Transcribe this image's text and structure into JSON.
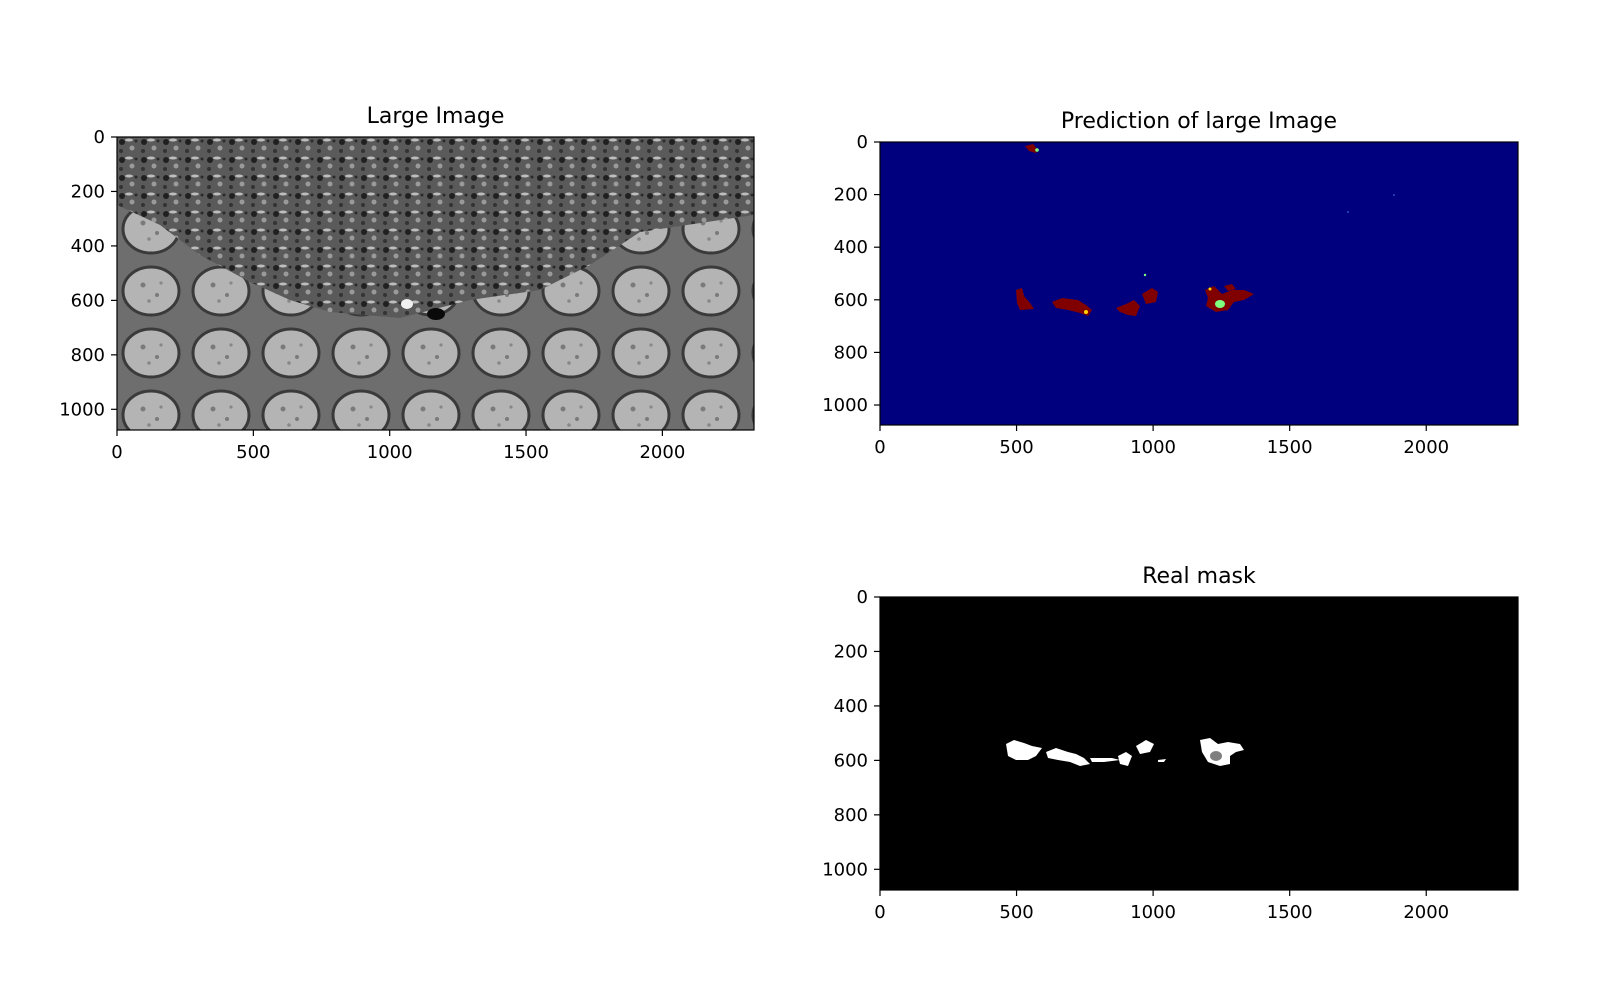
{
  "chart_data": [
    {
      "type": "image",
      "title": "Large Image",
      "xlabel": "",
      "ylabel": "",
      "x_ticks": [
        0,
        500,
        1000,
        1500,
        2000
      ],
      "y_ticks": [
        0,
        200,
        400,
        600,
        800,
        1000
      ],
      "xlim": [
        0,
        2336
      ],
      "ylim": [
        1076,
        0
      ],
      "colormap": "gray",
      "grid": false,
      "description_of_content": "grayscale microscopy tissue"
    },
    {
      "type": "image",
      "title": "Prediction of large Image",
      "xlabel": "",
      "ylabel": "",
      "x_ticks": [
        0,
        500,
        1000,
        1500,
        2000
      ],
      "y_ticks": [
        0,
        200,
        400,
        600,
        800,
        1000
      ],
      "xlim": [
        0,
        2336
      ],
      "ylim": [
        1076,
        0
      ],
      "colormap": "jet",
      "background_color": "#00007f",
      "region_color": "#800000",
      "highlight_color": "#7fff7f",
      "grid": false
    },
    {
      "type": "image",
      "title": "Real mask",
      "xlabel": "",
      "ylabel": "",
      "x_ticks": [
        0,
        500,
        1000,
        1500,
        2000
      ],
      "y_ticks": [
        0,
        200,
        400,
        600,
        800,
        1000
      ],
      "xlim": [
        0,
        2336
      ],
      "ylim": [
        1076,
        0
      ],
      "colormap": "gray",
      "background_color": "#000000",
      "region_color": "#ffffff",
      "grid": false
    }
  ]
}
